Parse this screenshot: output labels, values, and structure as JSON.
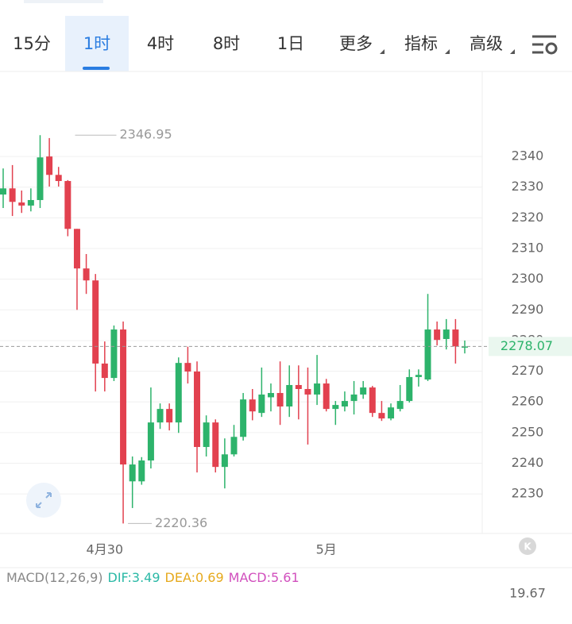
{
  "tabs": [
    "15分",
    "1时",
    "4时",
    "8时",
    "1日",
    "更多",
    "指标",
    "高级"
  ],
  "active_tab": "1时",
  "chart_data": {
    "type": "candlestick",
    "up_color": "#2db36b",
    "down_color": "#e2414f",
    "categories": [
      null,
      null,
      null,
      null,
      null,
      null,
      null,
      null,
      null,
      null,
      null,
      "4月30",
      null,
      null,
      null,
      null,
      null,
      null,
      null,
      null,
      null,
      null,
      null,
      null,
      null,
      null,
      null,
      null,
      null,
      null,
      null,
      null,
      null,
      null,
      null,
      "5月",
      null,
      null,
      null,
      null,
      null,
      null,
      null,
      null,
      null,
      null,
      null,
      null,
      null,
      null,
      null
    ],
    "open": [
      2327.6,
      2329.6,
      2325.0,
      2324.0,
      2325.8,
      2340.0,
      2334.0,
      2332.0,
      2316.4,
      2303.5,
      2299.6,
      2272.5,
      2267.8,
      2283.6,
      2234.1,
      2234.1,
      2240.9,
      2253.3,
      2257.7,
      2253.3,
      2272.7,
      2269.9,
      2245.3,
      2253.3,
      2238.8,
      2242.9,
      2248.6,
      2260.8,
      2256.4,
      2261.5,
      2262.9,
      2258.5,
      2265.5,
      2264.2,
      2262.4,
      2266.0,
      2257.7,
      2258.5,
      2260.3,
      2262.4,
      2264.7,
      2256.4,
      2254.6,
      2257.7,
      2260.3,
      2268.1,
      2267.3,
      2283.6,
      2280.5,
      2283.6,
      2277.9
    ],
    "high": [
      2336.1,
      2337.2,
      2328.9,
      2329.6,
      2346.95,
      2346.0,
      2336.6,
      2332.3,
      2316.4,
      2308.2,
      2301.7,
      2279.7,
      2284.9,
      2286.2,
      2242.2,
      2242.0,
      2264.7,
      2259.5,
      2259.5,
      2274.5,
      2278.0,
      2273.2,
      2255.6,
      2254.3,
      2248.1,
      2252.5,
      2262.9,
      2264.2,
      2271.2,
      2266.0,
      2273.2,
      2271.9,
      2271.9,
      2271.2,
      2275.3,
      2267.5,
      2260.3,
      2263.4,
      2266.8,
      2266.8,
      2265.2,
      2260.3,
      2259.5,
      2265.5,
      2270.6,
      2270.6,
      2295.2,
      2286.2,
      2287.0,
      2287.0,
      2280.0
    ],
    "low": [
      2323.2,
      2320.6,
      2321.6,
      2322.1,
      2323.2,
      2330.2,
      2330.2,
      2314.0,
      2290.0,
      2295.2,
      2263.4,
      2263.4,
      2266.8,
      2220.36,
      2225.4,
      2233.0,
      2238.3,
      2251.2,
      2250.7,
      2249.9,
      2266.0,
      2237.0,
      2242.2,
      2237.0,
      2231.8,
      2242.2,
      2247.4,
      2254.0,
      2255.1,
      2256.9,
      2252.5,
      2255.1,
      2254.3,
      2246.1,
      2259.0,
      2256.9,
      2252.5,
      2256.9,
      2255.9,
      2261.0,
      2255.1,
      2253.8,
      2254.0,
      2256.9,
      2259.8,
      2265.0,
      2266.8,
      2278.4,
      2277.1,
      2272.5,
      2275.8
    ],
    "close": [
      2329.6,
      2325.2,
      2324.0,
      2325.8,
      2339.7,
      2334.0,
      2332.0,
      2316.4,
      2303.5,
      2299.6,
      2272.5,
      2267.8,
      2283.6,
      2239.6,
      2239.6,
      2240.9,
      2253.3,
      2257.7,
      2253.3,
      2272.7,
      2269.9,
      2245.3,
      2253.3,
      2238.8,
      2242.9,
      2248.6,
      2260.8,
      2256.9,
      2262.4,
      2262.9,
      2258.5,
      2265.5,
      2264.2,
      2262.4,
      2266.0,
      2257.7,
      2259.0,
      2260.3,
      2262.4,
      2264.7,
      2256.4,
      2254.6,
      2258.2,
      2260.3,
      2268.1,
      2268.8,
      2283.6,
      2280.2,
      2283.6,
      2278.1,
      2278.07
    ],
    "ylim": [
      2217.1,
      2367.2
    ],
    "yticks": [
      2230,
      2240,
      2250,
      2260,
      2270,
      2280,
      2290,
      2300,
      2310,
      2320,
      2330,
      2340
    ],
    "grid": true,
    "high_mark": 2346.95,
    "low_mark": 2220.36,
    "last_price": 2278.07,
    "last_price_color": "#2db36b"
  },
  "macd_panel": {
    "title": "MACD(12,26,9)",
    "items": [
      {
        "label": "DIF:",
        "value": 3.49,
        "color": "#2bb9a6"
      },
      {
        "label": "DEA:",
        "value": 0.69,
        "color": "#e6a91c"
      },
      {
        "label": "MACD:",
        "value": 5.61,
        "color": "#d14fbd"
      }
    ],
    "axis_value": 19.67
  },
  "k_button": "K"
}
